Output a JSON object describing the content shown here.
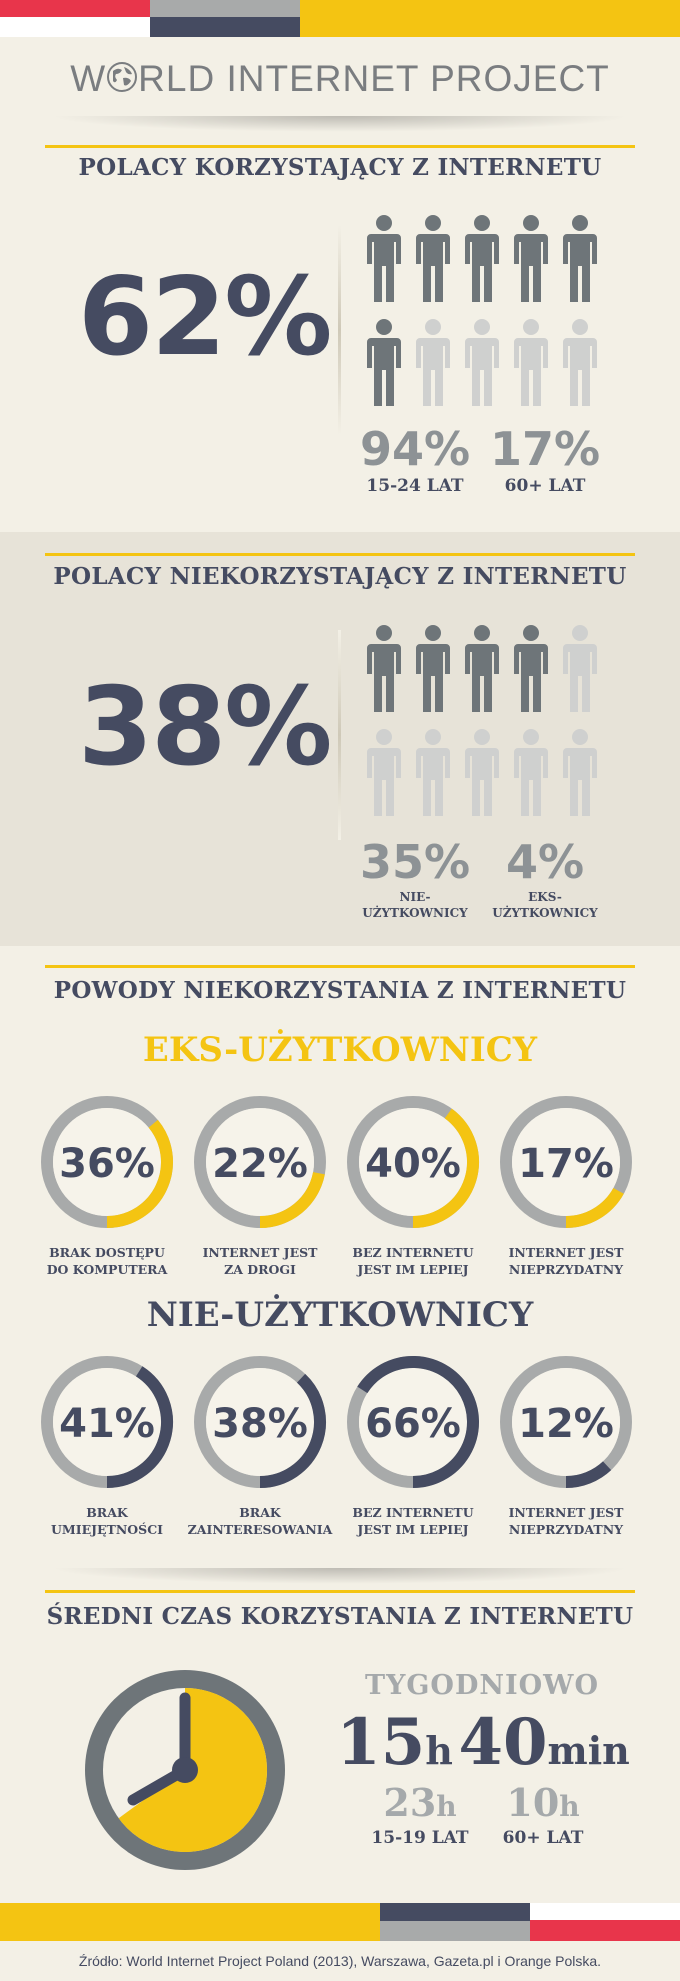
{
  "logo": {
    "title_prefix": "W",
    "title_rest": "RLD INTERNET PROJECT"
  },
  "colors": {
    "navy": "#454b61",
    "dark_gray": "#6e7579",
    "light_gray": "#cfd0cf",
    "yellow": "#f4c412",
    "red": "#e8354b"
  },
  "section_users": {
    "title": "POLACY KORZYSTAJĄCY Z INTERNETU",
    "big_percent": "62%",
    "people_filled": 6,
    "people_total": 10,
    "stats": [
      {
        "value": "94%",
        "label": "15-24 LAT"
      },
      {
        "value": "17%",
        "label": "60+ LAT"
      }
    ]
  },
  "section_nonusers": {
    "title": "POLACY NIEKORZYSTAJĄCY Z INTERNETU",
    "big_percent": "38%",
    "people_filled": 4,
    "people_total": 10,
    "stats": [
      {
        "value": "35%",
        "label_line1": "NIE-",
        "label_line2": "UŻYTKOWNICY"
      },
      {
        "value": "4%",
        "label_line1": "EKS-",
        "label_line2": "UŻYTKOWNICY"
      }
    ]
  },
  "section_reasons": {
    "title": "POWODY NIEKORZYSTANIA Z INTERNETU",
    "ex_heading": "EKS-UŻYTKOWNICY",
    "ex_items": [
      {
        "value": 36,
        "display": "36%",
        "line1": "BRAK DOSTĘPU",
        "line2": "DO KOMPUTERA"
      },
      {
        "value": 22,
        "display": "22%",
        "line1": "INTERNET JEST",
        "line2": "ZA DROGI"
      },
      {
        "value": 40,
        "display": "40%",
        "line1": "BEZ INTERNETU",
        "line2": "JEST IM LEPIEJ"
      },
      {
        "value": 17,
        "display": "17%",
        "line1": "INTERNET JEST",
        "line2": "NIEPRZYDATNY"
      }
    ],
    "non_heading": "NIE-UŻYTKOWNICY",
    "non_items": [
      {
        "value": 41,
        "display": "41%",
        "line1": "BRAK",
        "line2": "UMIEJĘTNOŚCI"
      },
      {
        "value": 38,
        "display": "38%",
        "line1": "BRAK",
        "line2": "ZAINTERESOWANIA"
      },
      {
        "value": 66,
        "display": "66%",
        "line1": "BEZ INTERNETU",
        "line2": "JEST IM LEPIEJ"
      },
      {
        "value": 12,
        "display": "12%",
        "line1": "INTERNET JEST",
        "line2": "NIEPRZYDATNY"
      }
    ]
  },
  "section_time": {
    "title": "ŚREDNI CZAS KORZYSTANIA Z INTERNETU",
    "period": "TYGODNIOWO",
    "hours": "15",
    "hours_unit": "h",
    "minutes": "40",
    "minutes_unit": "min",
    "ages": [
      {
        "hours": "23",
        "unit": "h",
        "label": "15-19 LAT"
      },
      {
        "hours": "10",
        "unit": "h",
        "label": "60+ LAT"
      }
    ],
    "clock_fraction_shown": 0.65
  },
  "footer": {
    "source": "Źródło: World Internet Project Poland (2013), Warszawa, Gazeta.pl i Orange Polska."
  }
}
